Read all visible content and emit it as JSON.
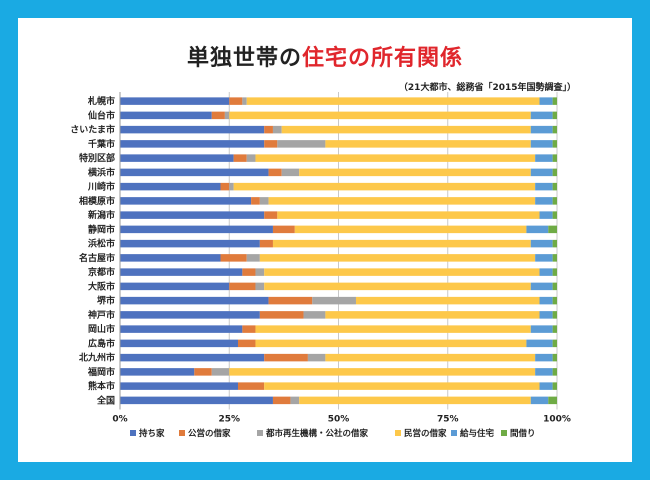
{
  "title_pre": "単独世帯の",
  "title_red": "住宅の所有関係",
  "subtitle": "（21大都市、総務省「2015年国勢調査」）",
  "highlight_category": "福岡市",
  "colors": {
    "background": "#1aaae3",
    "highlight_label": "#e0262c",
    "series": [
      "#4e72bf",
      "#e07b3c",
      "#a5a5a5",
      "#fdc84a",
      "#5b9bd5",
      "#6fab45"
    ]
  },
  "chart_data": {
    "type": "bar",
    "orientation": "horizontal",
    "stacked": true,
    "percent": true,
    "categories": [
      "札幌市",
      "仙台市",
      "さいたま市",
      "千葉市",
      "特別区部",
      "横浜市",
      "川崎市",
      "相模原市",
      "新潟市",
      "静岡市",
      "浜松市",
      "名古屋市",
      "京都市",
      "大阪市",
      "堺市",
      "神戸市",
      "岡山市",
      "広島市",
      "北九州市",
      "福岡市",
      "熊本市",
      "全国"
    ],
    "series": [
      {
        "name": "持ち家",
        "values": [
          25,
          21,
          33,
          33,
          26,
          34,
          23,
          30,
          33,
          35,
          32,
          23,
          28,
          25,
          34,
          32,
          28,
          27,
          33,
          17,
          27,
          35
        ]
      },
      {
        "name": "公営の借家",
        "values": [
          3,
          3,
          2,
          3,
          3,
          3,
          2,
          2,
          3,
          5,
          3,
          6,
          3,
          6,
          10,
          10,
          3,
          4,
          10,
          4,
          6,
          4
        ]
      },
      {
        "name": "都市再生機構・公社の借家",
        "values": [
          1,
          1,
          2,
          11,
          2,
          4,
          1,
          2,
          0,
          0,
          0,
          3,
          2,
          2,
          10,
          5,
          0,
          0,
          4,
          4,
          0,
          2
        ]
      },
      {
        "name": "民営の借家",
        "values": [
          67,
          69,
          57,
          47,
          64,
          53,
          69,
          61,
          60,
          53,
          59,
          63,
          63,
          61,
          42,
          49,
          63,
          62,
          48,
          70,
          63,
          53
        ]
      },
      {
        "name": "給与住宅",
        "values": [
          3,
          5,
          5,
          5,
          4,
          5,
          4,
          4,
          3,
          5,
          5,
          4,
          3,
          5,
          3,
          3,
          5,
          6,
          4,
          4,
          3,
          4
        ]
      },
      {
        "name": "間借り",
        "values": [
          1,
          1,
          1,
          1,
          1,
          1,
          1,
          1,
          1,
          2,
          1,
          1,
          1,
          1,
          1,
          1,
          1,
          1,
          1,
          1,
          1,
          2
        ]
      }
    ],
    "xlim": [
      0,
      100
    ],
    "x_ticks": [
      "0%",
      "25%",
      "50%",
      "75%",
      "100%"
    ],
    "grid": true,
    "legend_position": "bottom"
  }
}
